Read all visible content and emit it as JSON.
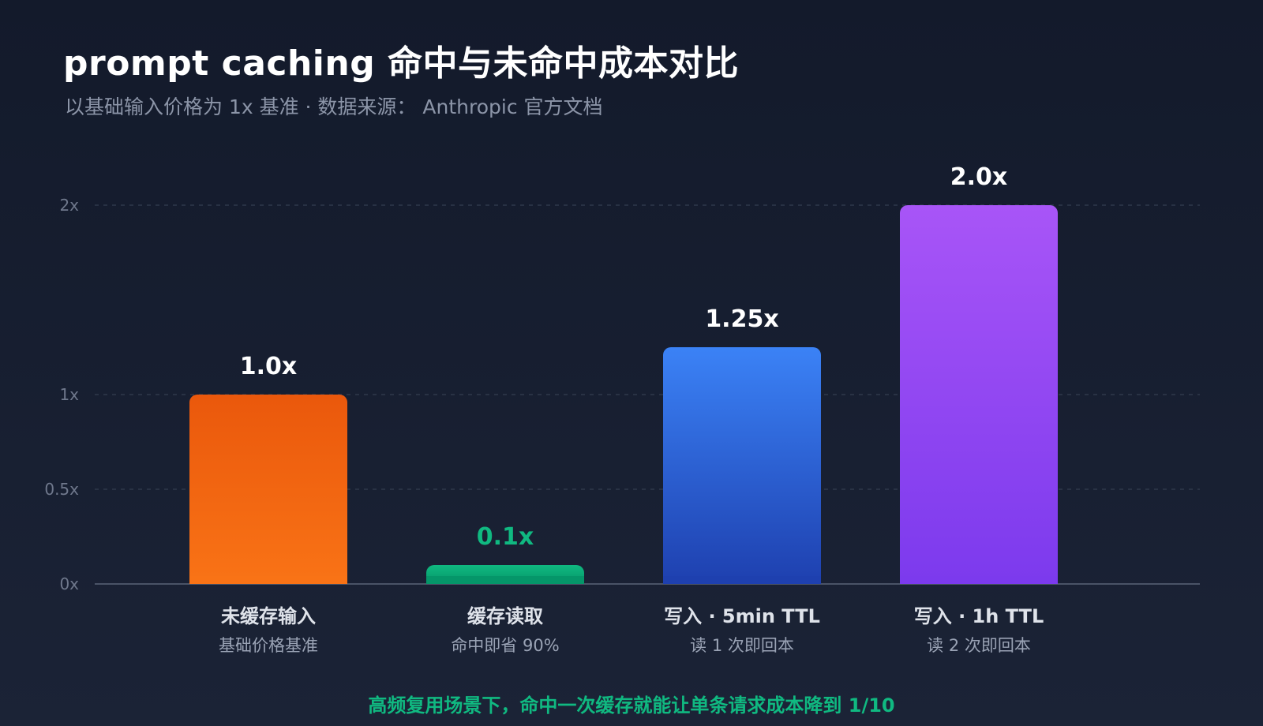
{
  "header": {
    "title": "prompt caching 命中与未命中成本对比",
    "subtitle": "以基础输入价格为 1x 基准 · 数据来源： Anthropic 官方文档"
  },
  "footer": {
    "note": "高频复用场景下，命中一次缓存就能让单条请求成本降到 1/10"
  },
  "chart_data": {
    "type": "bar",
    "title": "prompt caching 命中与未命中成本对比",
    "subtitle": "以基础输入价格为 1x 基准 · 数据来源： Anthropic 官方文档",
    "xlabel": "",
    "ylabel": "",
    "ylim": [
      0,
      2
    ],
    "yticks": [
      {
        "value": 0,
        "label": "0x"
      },
      {
        "value": 0.5,
        "label": "0.5x"
      },
      {
        "value": 1,
        "label": "1x"
      },
      {
        "value": 2,
        "label": "2x"
      }
    ],
    "grid": true,
    "categories": [
      "未缓存输入",
      "缓存读取",
      "写入 · 5min TTL",
      "写入 · 1h TTL"
    ],
    "subcategories": [
      "基础价格基准",
      "命中即省 90%",
      "读 1 次即回本",
      "读 2 次即回本"
    ],
    "values": [
      1.0,
      0.1,
      1.25,
      2.0
    ],
    "value_labels": [
      "1.0x",
      "0.1x",
      "1.25x",
      "2.0x"
    ],
    "colors": [
      {
        "top": "#ea580c",
        "bottom": "#f97316"
      },
      {
        "top": "#10b981",
        "bottom": "#059669"
      },
      {
        "top": "#3b82f6",
        "bottom": "#1e40af"
      },
      {
        "top": "#a855f7",
        "bottom": "#7c3aed"
      }
    ],
    "value_label_colors": [
      "#ffffff",
      "#10b981",
      "#ffffff",
      "#ffffff"
    ]
  }
}
